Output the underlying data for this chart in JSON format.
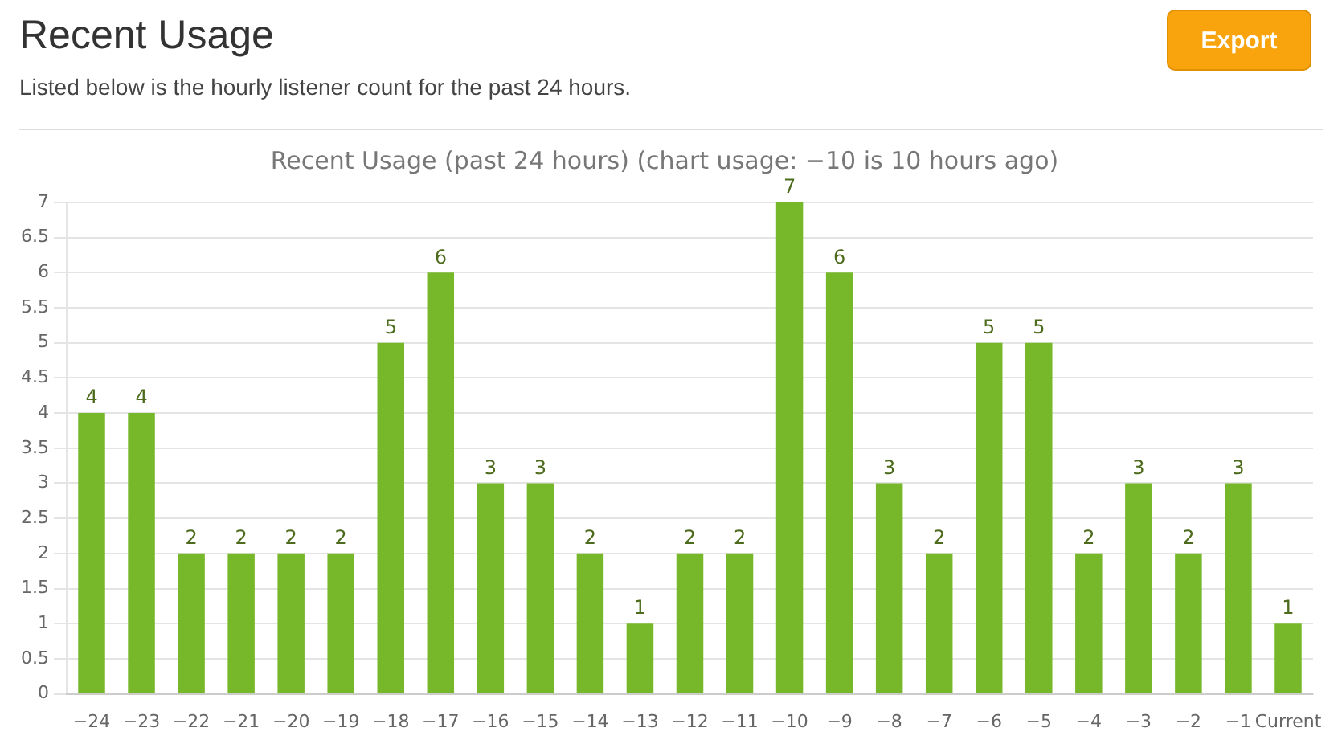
{
  "chart_data": {
    "type": "bar",
    "title": "Recent Usage",
    "subtitle": "Listed below is the hourly listener count for the past 24 hours.",
    "annotations": [
      "Recent Usage (past 24 hours) (chart usage: −10 is 10 hours ago)",
      "Export"
    ],
    "categories": [
      "−24",
      "−23",
      "−22",
      "−21",
      "−20",
      "−19",
      "−18",
      "−17",
      "−16",
      "−15",
      "−14",
      "−13",
      "−12",
      "−11",
      "−10",
      "−9",
      "−8",
      "−7",
      "−6",
      "−5",
      "−4",
      "−3",
      "−2",
      "−1",
      "Current"
    ],
    "values": [
      4,
      4,
      2,
      2,
      2,
      2,
      5,
      6,
      3,
      3,
      2,
      1,
      2,
      2,
      7,
      6,
      3,
      2,
      5,
      5,
      2,
      3,
      2,
      3,
      1
    ],
    "color": "#77b82a",
    "ylim": [
      0,
      7
    ],
    "yticks": [
      0,
      0.5,
      1,
      1.5,
      2,
      2.5,
      3,
      3.5,
      4,
      4.5,
      5,
      5.5,
      6,
      6.5,
      7
    ],
    "grid": "y",
    "legend": false,
    "data_labels": true
  }
}
